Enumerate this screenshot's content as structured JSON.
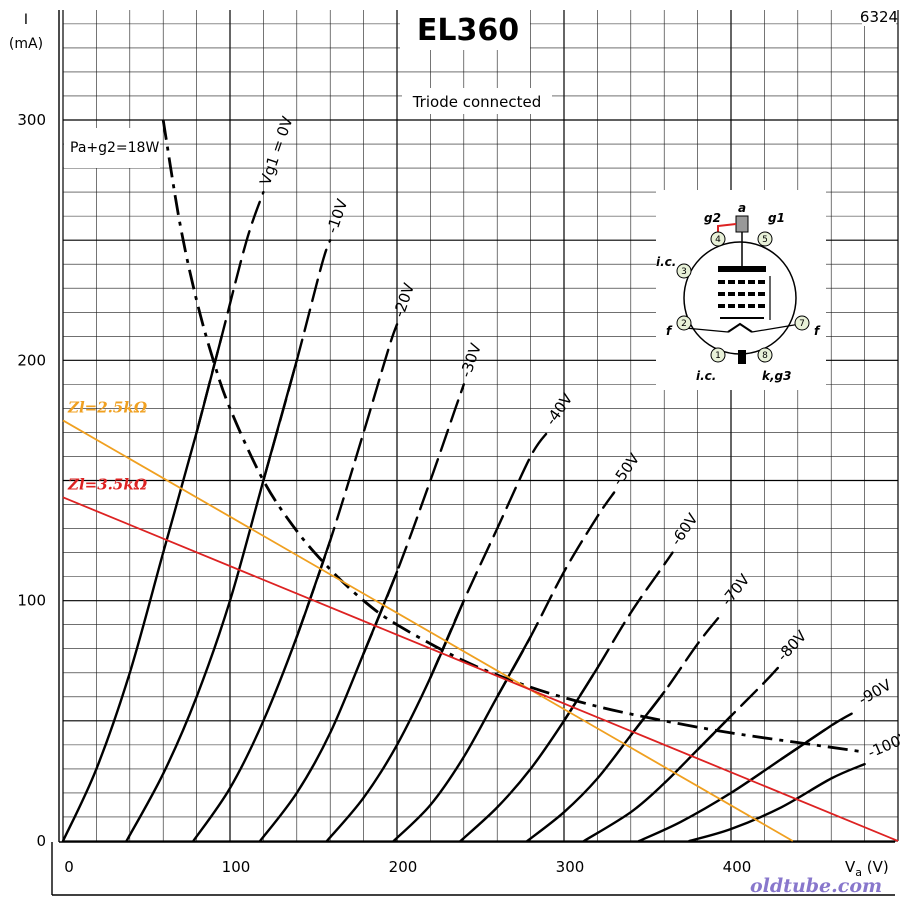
{
  "header": {
    "title": "EL360",
    "ref_number": "6324",
    "subtitle": "Triode connected",
    "max_dissipation_label": "Pa+g2=18W"
  },
  "watermark": "oldtube.com",
  "base_diagram": {
    "pins": [
      {
        "num": "1",
        "label": "i.c."
      },
      {
        "num": "2",
        "label": "f"
      },
      {
        "num": "3",
        "label": "i.c."
      },
      {
        "num": "4",
        "label": "g2"
      },
      {
        "num": "5",
        "label": "g1"
      },
      {
        "num": "7",
        "label": "f"
      },
      {
        "num": "8",
        "label": "k,g3"
      }
    ],
    "top_cap_label": "a",
    "accent_color": "#dd2222",
    "bg_color": "#ffffff"
  },
  "chart_data": {
    "type": "line",
    "title": "EL360",
    "subtitle": "Triode connected",
    "xlabel": "Va (V)",
    "ylabel": "I (mA)",
    "xlim": [
      0,
      500
    ],
    "ylim": [
      0,
      300
    ],
    "x_ticks": [
      0,
      100,
      200,
      300,
      400
    ],
    "y_ticks": [
      0,
      100,
      200,
      300
    ],
    "grid": true,
    "series": [
      {
        "name": "Vg1 = 0V",
        "points": [
          [
            0,
            0
          ],
          [
            20,
            30
          ],
          [
            40,
            70
          ],
          [
            60,
            120
          ],
          [
            80,
            170
          ],
          [
            95,
            210
          ],
          [
            110,
            250
          ],
          [
            120,
            270
          ]
        ]
      },
      {
        "name": "-10V",
        "points": [
          [
            38,
            0
          ],
          [
            60,
            28
          ],
          [
            80,
            60
          ],
          [
            100,
            100
          ],
          [
            120,
            150
          ],
          [
            140,
            200
          ],
          [
            155,
            240
          ],
          [
            160,
            250
          ]
        ]
      },
      {
        "name": "-20V",
        "points": [
          [
            78,
            0
          ],
          [
            100,
            22
          ],
          [
            120,
            50
          ],
          [
            140,
            85
          ],
          [
            160,
            125
          ],
          [
            180,
            170
          ],
          [
            195,
            205
          ],
          [
            200,
            215
          ]
        ]
      },
      {
        "name": "-30V",
        "points": [
          [
            118,
            0
          ],
          [
            140,
            20
          ],
          [
            160,
            45
          ],
          [
            180,
            78
          ],
          [
            200,
            112
          ],
          [
            220,
            150
          ],
          [
            235,
            180
          ],
          [
            240,
            190
          ]
        ]
      },
      {
        "name": "-40V",
        "points": [
          [
            158,
            0
          ],
          [
            180,
            18
          ],
          [
            200,
            40
          ],
          [
            220,
            68
          ],
          [
            240,
            100
          ],
          [
            260,
            130
          ],
          [
            280,
            160
          ],
          [
            290,
            170
          ]
        ]
      },
      {
        "name": "-50V",
        "points": [
          [
            198,
            0
          ],
          [
            220,
            15
          ],
          [
            240,
            35
          ],
          [
            260,
            60
          ],
          [
            280,
            85
          ],
          [
            300,
            112
          ],
          [
            320,
            135
          ],
          [
            330,
            145
          ]
        ]
      },
      {
        "name": "-60V",
        "points": [
          [
            238,
            0
          ],
          [
            260,
            14
          ],
          [
            280,
            30
          ],
          [
            300,
            50
          ],
          [
            320,
            72
          ],
          [
            340,
            95
          ],
          [
            360,
            115
          ],
          [
            365,
            120
          ]
        ]
      },
      {
        "name": "-70V",
        "points": [
          [
            278,
            0
          ],
          [
            300,
            12
          ],
          [
            320,
            26
          ],
          [
            340,
            44
          ],
          [
            360,
            62
          ],
          [
            380,
            82
          ],
          [
            395,
            95
          ]
        ]
      },
      {
        "name": "-80V",
        "points": [
          [
            312,
            0
          ],
          [
            340,
            12
          ],
          [
            360,
            24
          ],
          [
            380,
            38
          ],
          [
            400,
            52
          ],
          [
            420,
            66
          ],
          [
            428,
            72
          ]
        ]
      },
      {
        "name": "-90V",
        "points": [
          [
            345,
            0
          ],
          [
            370,
            8
          ],
          [
            400,
            20
          ],
          [
            430,
            34
          ],
          [
            460,
            48
          ],
          [
            475,
            54
          ]
        ]
      },
      {
        "name": "-100V",
        "points": [
          [
            375,
            0
          ],
          [
            400,
            5
          ],
          [
            430,
            14
          ],
          [
            460,
            26
          ],
          [
            480,
            32
          ]
        ]
      }
    ],
    "dissipation_curve": {
      "name": "Pa+g2=18W",
      "points": [
        [
          60,
          300
        ],
        [
          70,
          257
        ],
        [
          80,
          225
        ],
        [
          90,
          200
        ],
        [
          100,
          180
        ],
        [
          120,
          150
        ],
        [
          140,
          129
        ],
        [
          160,
          113
        ],
        [
          180,
          100
        ],
        [
          200,
          90
        ],
        [
          240,
          75
        ],
        [
          280,
          64
        ],
        [
          320,
          56
        ],
        [
          360,
          50
        ],
        [
          400,
          45
        ],
        [
          450,
          40
        ],
        [
          480,
          37
        ]
      ]
    },
    "load_lines": [
      {
        "name": "Zl=2.5kΩ",
        "color": "#f0a020",
        "points": [
          [
            0,
            175
          ],
          [
            437,
            0
          ]
        ]
      },
      {
        "name": "Zl=3.5kΩ",
        "color": "#dd2222",
        "points": [
          [
            0,
            143
          ],
          [
            500,
            0
          ]
        ]
      }
    ]
  }
}
